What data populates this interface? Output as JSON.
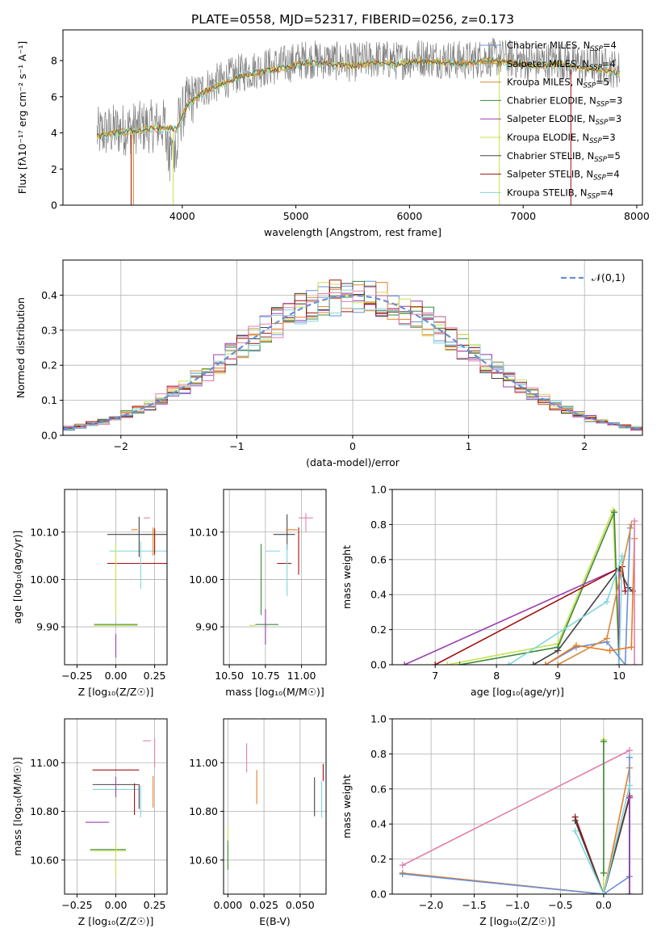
{
  "figure": {
    "title": "PLATE=0558, MJD=52317, FIBERID=0256, z=0.173",
    "colors": {
      "chabrier_miles": "#6a8fd6",
      "salpeter_miles": "#e87d1f",
      "kroupa_miles": "#d88a3a",
      "chabrier_elodie": "#3a8a3a",
      "salpeter_elodie": "#9b3fb0",
      "kroupa_elodie": "#c8e04a",
      "chabrier_stelib": "#444444",
      "salpeter_stelib": "#a01010",
      "kroupa_stelib": "#7fd6dc",
      "data": "#808080",
      "pink": "#e080b0",
      "grid": "#b0b0b0"
    }
  },
  "chart_data": [
    {
      "id": "spectrum",
      "type": "line",
      "xlabel": "wavelength [Angstrom, rest frame]",
      "ylabel": "Flux [fλ10⁻¹⁷ erg cm⁻² s⁻¹ A⁻¹]",
      "xlim": [
        2950,
        8050
      ],
      "ylim": [
        0,
        9.7
      ],
      "xticks": [
        4000,
        5000,
        6000,
        7000,
        8000
      ],
      "yticks": [
        0,
        2,
        4,
        6,
        8
      ],
      "grid": false,
      "legend_position": "top-right",
      "legend": [
        {
          "label": "Chabrier MILES, N",
          "sub": "SSP",
          "suffix": "=4",
          "color_key": "chabrier_miles"
        },
        {
          "label": "Salpeter MILES, N",
          "sub": "SSP",
          "suffix": "=4",
          "color_key": "salpeter_miles"
        },
        {
          "label": "Kroupa MILES, N",
          "sub": "SSP",
          "suffix": "=5",
          "color_key": "kroupa_miles"
        },
        {
          "label": "Chabrier ELODIE, N",
          "sub": "SSP",
          "suffix": "=3",
          "color_key": "chabrier_elodie"
        },
        {
          "label": "Salpeter ELODIE, N",
          "sub": "SSP",
          "suffix": "=3",
          "color_key": "salpeter_elodie"
        },
        {
          "label": "Kroupa ELODIE, N",
          "sub": "SSP",
          "suffix": "=3",
          "color_key": "kroupa_elodie"
        },
        {
          "label": "Chabrier STELIB, N",
          "sub": "SSP",
          "suffix": "=5",
          "color_key": "chabrier_stelib"
        },
        {
          "label": "Salpeter STELIB, N",
          "sub": "SSP",
          "suffix": "=4",
          "color_key": "salpeter_stelib"
        },
        {
          "label": "Kroupa STELIB, N",
          "sub": "SSP",
          "suffix": "=4",
          "color_key": "kroupa_stelib"
        }
      ],
      "envelope": {
        "x": [
          3250,
          3400,
          3550,
          3700,
          3850,
          3950,
          4050,
          4200,
          4350,
          4500,
          4700,
          4900,
          5100,
          5300,
          5500,
          5700,
          5900,
          6100,
          6300,
          6500,
          6700,
          6900,
          7100,
          7300,
          7500,
          7700,
          7850
        ],
        "y": [
          4.1,
          4.3,
          4.4,
          4.5,
          4.6,
          4.5,
          5.9,
          6.6,
          7.0,
          7.4,
          7.7,
          7.9,
          8.2,
          8.1,
          8.0,
          8.2,
          8.1,
          8.3,
          8.2,
          8.1,
          8.3,
          8.2,
          8.0,
          8.1,
          7.9,
          7.8,
          7.6
        ]
      },
      "dropouts": [
        {
          "x": 3550,
          "color_key": "salpeter_stelib"
        },
        {
          "x": 3570,
          "color_key": "salpeter_miles"
        },
        {
          "x": 3920,
          "color_key": "kroupa_elodie"
        },
        {
          "x": 6790,
          "color_key": "kroupa_elodie"
        },
        {
          "x": 7420,
          "color_key": "salpeter_stelib"
        }
      ]
    },
    {
      "id": "residuals",
      "type": "histogram",
      "xlabel": "(data-model)/error",
      "ylabel": "Normed distribution",
      "xlim": [
        -2.5,
        2.5
      ],
      "ylim": [
        0,
        0.5
      ],
      "xticks": [
        -2,
        -1,
        0,
        1,
        2
      ],
      "yticks": [
        0.0,
        0.1,
        0.2,
        0.3,
        0.4
      ],
      "grid": true,
      "legend_position": "top-right",
      "legend": [
        {
          "label": "𝒩(0,1)",
          "color_key": "chabrier_miles",
          "style": "dashed"
        }
      ],
      "bin_width": 0.1
    },
    {
      "id": "age-vs-Z",
      "type": "errorbar",
      "xlabel": "Z [log₁₀(Z/Z☉)]",
      "ylabel": "age  [log₁₀(age/yr)]",
      "xlim": [
        -0.33,
        0.33
      ],
      "ylim": [
        9.82,
        10.19
      ],
      "xticks": [
        -0.25,
        0.0,
        0.25
      ],
      "yticks": [
        9.9,
        10.0,
        10.1
      ],
      "grid": true,
      "points": [
        {
          "x": 0.18,
          "xerr": 0.47,
          "y": 10.095,
          "yerr": 0.0,
          "color_key": "chabrier_stelib"
        },
        {
          "x": 0.18,
          "xerr": 0.47,
          "y": 10.034,
          "yerr": 0.0,
          "color_key": "salpeter_stelib"
        },
        {
          "x": 0.15,
          "xerr": 0.38,
          "y": 10.06,
          "yerr": 0.0,
          "color_key": "kroupa_stelib"
        },
        {
          "x": 0.0,
          "xerr": 0.28,
          "y": 9.905,
          "yerr": 0.0,
          "color_key": "chabrier_elodie"
        },
        {
          "x": 0.0,
          "xerr": 0.28,
          "y": 9.903,
          "yerr": 0.0,
          "color_key": "kroupa_elodie"
        },
        {
          "x": 0.0,
          "xerr": 0.0,
          "y": 10.0,
          "yerr": 0.15,
          "color_key": "kroupa_elodie"
        },
        {
          "x": 0.0,
          "xerr": 0.0,
          "y": 9.86,
          "yerr": 0.05,
          "color_key": "salpeter_elodie"
        },
        {
          "x": 0.2,
          "xerr": 0.04,
          "y": 10.13,
          "yerr": 0.0,
          "color_key": "pink"
        },
        {
          "x": 0.15,
          "xerr": 0.0,
          "y": 10.09,
          "yerr": 0.085,
          "color_key": "chabrier_stelib"
        },
        {
          "x": 0.16,
          "xerr": 0.0,
          "y": 10.03,
          "yerr": 0.1,
          "color_key": "kroupa_stelib"
        },
        {
          "x": 0.24,
          "xerr": 0.0,
          "y": 10.08,
          "yerr": 0.06,
          "color_key": "salpeter_miles"
        },
        {
          "x": 0.25,
          "xerr": 0.0,
          "y": 10.08,
          "yerr": 0.055,
          "color_key": "salpeter_stelib"
        },
        {
          "x": 0.12,
          "xerr": 0.04,
          "y": 10.105,
          "yerr": 0.0,
          "color_key": "salpeter_miles"
        }
      ]
    },
    {
      "id": "age-vs-mass",
      "type": "errorbar",
      "xlabel": "mass [log₁₀(M/M☉)]",
      "ylabel": "",
      "xlim": [
        10.46,
        11.17
      ],
      "ylim": [
        9.82,
        10.19
      ],
      "xticks": [
        10.5,
        10.75,
        11.0
      ],
      "yticks": [
        9.9,
        10.0,
        10.1
      ],
      "grid": true,
      "points": [
        {
          "x": 10.88,
          "xerr": 0.15,
          "y": 10.095,
          "yerr": 0.0,
          "color_key": "chabrier_stelib"
        },
        {
          "x": 10.88,
          "xerr": 0.1,
          "y": 10.034,
          "yerr": 0.0,
          "color_key": "salpeter_stelib"
        },
        {
          "x": 10.76,
          "xerr": 0.16,
          "y": 9.905,
          "yerr": 0.0,
          "color_key": "chabrier_elodie"
        },
        {
          "x": 10.66,
          "xerr": 0.04,
          "y": 9.903,
          "yerr": 0.0,
          "color_key": "kroupa_elodie"
        },
        {
          "x": 10.8,
          "xerr": 0.1,
          "y": 10.06,
          "yerr": 0.0,
          "color_key": "kroupa_stelib"
        },
        {
          "x": 10.72,
          "xerr": 0.0,
          "y": 10.0,
          "yerr": 0.15,
          "color_key": "chabrier_elodie"
        },
        {
          "x": 10.75,
          "xerr": 0.0,
          "y": 9.9,
          "yerr": 0.075,
          "color_key": "salpeter_elodie"
        },
        {
          "x": 10.98,
          "xerr": 0.0,
          "y": 10.06,
          "yerr": 0.1,
          "color_key": "salpeter_stelib"
        },
        {
          "x": 10.9,
          "xerr": 0.0,
          "y": 10.1,
          "yerr": 0.075,
          "color_key": "chabrier_stelib"
        },
        {
          "x": 10.9,
          "xerr": 0.0,
          "y": 10.02,
          "yerr": 0.11,
          "color_key": "kroupa_stelib"
        },
        {
          "x": 11.03,
          "xerr": 0.1,
          "y": 10.13,
          "yerr": 0.0,
          "color_key": "pink"
        },
        {
          "x": 11.03,
          "xerr": 0.0,
          "y": 10.12,
          "yerr": 0.04,
          "color_key": "pink"
        },
        {
          "x": 10.93,
          "xerr": 0.08,
          "y": 10.105,
          "yerr": 0.0,
          "color_key": "salpeter_miles"
        }
      ]
    },
    {
      "id": "massweight-vs-age",
      "type": "line",
      "xlabel": "age  [log₁₀(age/yr)]",
      "ylabel": "mass weight",
      "xlim": [
        6.3,
        10.38
      ],
      "ylim": [
        0.0,
        1.0
      ],
      "xticks": [
        7,
        8,
        9,
        10
      ],
      "yticks": [
        0.0,
        0.2,
        0.4,
        0.6,
        0.8,
        1.0
      ],
      "grid": true,
      "series": [
        {
          "color_key": "kroupa_elodie",
          "x": [
            7.2,
            9.0,
            9.9,
            10.0
          ],
          "y": [
            0.0,
            0.12,
            0.88,
            0.0
          ]
        },
        {
          "color_key": "chabrier_elodie",
          "x": [
            7.4,
            9.0,
            9.92,
            10.0
          ],
          "y": [
            0.0,
            0.1,
            0.87,
            0.0
          ]
        },
        {
          "color_key": "salpeter_elodie",
          "x": [
            6.5,
            10.0,
            10.0
          ],
          "y": [
            0.0,
            0.55,
            0.0
          ]
        },
        {
          "color_key": "salpeter_stelib",
          "x": [
            7.0,
            10.05,
            10.1
          ],
          "y": [
            0.0,
            0.56,
            0.42
          ]
        },
        {
          "color_key": "chabrier_stelib",
          "x": [
            8.6,
            9.0,
            10.0,
            10.15,
            10.22
          ],
          "y": [
            0.0,
            0.08,
            0.55,
            0.44,
            0.42
          ]
        },
        {
          "color_key": "kroupa_stelib",
          "x": [
            8.2,
            9.8,
            10.05,
            10.0
          ],
          "y": [
            0.0,
            0.36,
            0.62,
            0.0
          ]
        },
        {
          "color_key": "chabrier_miles",
          "x": [
            8.8,
            9.3,
            9.8,
            10.1,
            10.18
          ],
          "y": [
            0.0,
            0.1,
            0.13,
            0.0,
            0.78
          ]
        },
        {
          "color_key": "salpeter_miles",
          "x": [
            8.8,
            9.3,
            9.85,
            10.2,
            10.25
          ],
          "y": [
            0.0,
            0.11,
            0.08,
            0.1,
            0.72
          ]
        },
        {
          "color_key": "kroupa_miles",
          "x": [
            9.0,
            9.8,
            10.2
          ],
          "y": [
            0.0,
            0.15,
            0.8
          ]
        },
        {
          "color_key": "pink",
          "x": [
            10.25,
            10.25
          ],
          "y": [
            0.0,
            0.82
          ]
        }
      ]
    },
    {
      "id": "mass-vs-Z",
      "type": "errorbar",
      "xlabel": "Z [log₁₀(Z/Z☉)]",
      "ylabel": "mass [log₁₀(M/M☉)]",
      "xlim": [
        -0.33,
        0.33
      ],
      "ylim": [
        10.46,
        11.18
      ],
      "xticks": [
        -0.25,
        0.0,
        0.25
      ],
      "yticks": [
        10.6,
        10.8,
        11.0
      ],
      "grid": true,
      "points": [
        {
          "x": 0.0,
          "xerr": 0.3,
          "y": 10.97,
          "yerr": 0.0,
          "color_key": "salpeter_stelib"
        },
        {
          "x": 0.0,
          "xerr": 0.3,
          "y": 10.91,
          "yerr": 0.0,
          "color_key": "chabrier_stelib"
        },
        {
          "x": 0.0,
          "xerr": 0.3,
          "y": 10.89,
          "yerr": 0.0,
          "color_key": "kroupa_stelib"
        },
        {
          "x": -0.12,
          "xerr": 0.15,
          "y": 10.755,
          "yerr": 0.0,
          "color_key": "salpeter_elodie"
        },
        {
          "x": -0.05,
          "xerr": 0.23,
          "y": 10.643,
          "yerr": 0.0,
          "color_key": "chabrier_elodie"
        },
        {
          "x": -0.05,
          "xerr": 0.23,
          "y": 10.638,
          "yerr": 0.0,
          "color_key": "kroupa_elodie"
        },
        {
          "x": 0.0,
          "xerr": 0.0,
          "y": 10.6,
          "yerr": 0.14,
          "color_key": "kroupa_elodie"
        },
        {
          "x": 0.0,
          "xerr": 0.0,
          "y": 10.9,
          "yerr": 0.085,
          "color_key": "salpeter_elodie"
        },
        {
          "x": 0.2,
          "xerr": 0.05,
          "y": 11.09,
          "yerr": 0.0,
          "color_key": "pink"
        },
        {
          "x": 0.25,
          "xerr": 0.0,
          "y": 11.04,
          "yerr": 0.12,
          "color_key": "pink"
        },
        {
          "x": 0.12,
          "xerr": 0.0,
          "y": 10.85,
          "yerr": 0.13,
          "color_key": "salpeter_stelib"
        },
        {
          "x": 0.15,
          "xerr": 0.0,
          "y": 10.86,
          "yerr": 0.1,
          "color_key": "chabrier_stelib"
        },
        {
          "x": 0.16,
          "xerr": 0.0,
          "y": 10.84,
          "yerr": 0.13,
          "color_key": "kroupa_stelib"
        },
        {
          "x": 0.24,
          "xerr": 0.0,
          "y": 10.88,
          "yerr": 0.13,
          "color_key": "salpeter_miles"
        }
      ]
    },
    {
      "id": "mass-vs-EBV",
      "type": "errorbar",
      "xlabel": "E(B-V)",
      "ylabel": "",
      "xlim": [
        -0.003,
        0.068
      ],
      "ylim": [
        10.46,
        11.18
      ],
      "xticks": [
        0.0,
        0.025,
        0.05
      ],
      "yticks": [
        10.6,
        10.8,
        11.0
      ],
      "grid": true,
      "points": [
        {
          "x": 0.0,
          "xerr": 0.0,
          "y": 10.65,
          "yerr": 0.18,
          "color_key": "kroupa_elodie"
        },
        {
          "x": 0.0,
          "xerr": 0.0,
          "y": 10.62,
          "yerr": 0.12,
          "color_key": "chabrier_elodie"
        },
        {
          "x": 0.013,
          "xerr": 0.0,
          "y": 11.02,
          "yerr": 0.12,
          "color_key": "pink"
        },
        {
          "x": 0.02,
          "xerr": 0.0,
          "y": 10.9,
          "yerr": 0.14,
          "color_key": "salpeter_miles"
        },
        {
          "x": 0.06,
          "xerr": 0.0,
          "y": 10.86,
          "yerr": 0.16,
          "color_key": "chabrier_stelib"
        },
        {
          "x": 0.065,
          "xerr": 0.0,
          "y": 10.85,
          "yerr": 0.15,
          "color_key": "kroupa_stelib"
        },
        {
          "x": 0.066,
          "xerr": 0.0,
          "y": 10.96,
          "yerr": 0.07,
          "color_key": "salpeter_stelib"
        }
      ]
    },
    {
      "id": "massweight-vs-Z",
      "type": "line",
      "xlabel": "Z [log₁₀(Z/Z☉)]",
      "ylabel": "mass weight",
      "xlim": [
        -2.45,
        0.45
      ],
      "ylim": [
        0.0,
        1.0
      ],
      "xticks": [
        -2.0,
        -1.5,
        -1.0,
        -0.5,
        0.0
      ],
      "yticks": [
        0.0,
        0.2,
        0.4,
        0.6,
        0.8,
        1.0
      ],
      "grid": true,
      "series": [
        {
          "color_key": "pink",
          "x": [
            -2.33,
            0.3
          ],
          "y": [
            0.165,
            0.82
          ]
        },
        {
          "color_key": "salpeter_miles",
          "x": [
            -2.33,
            0.0,
            0.3
          ],
          "y": [
            0.12,
            0.0,
            0.72
          ]
        },
        {
          "color_key": "chabrier_miles",
          "x": [
            -2.33,
            0.0,
            0.3,
            0.3
          ],
          "y": [
            0.115,
            0.0,
            0.1,
            0.78
          ]
        },
        {
          "color_key": "kroupa_elodie",
          "x": [
            0.0,
            0.0
          ],
          "y": [
            0.0,
            0.88
          ]
        },
        {
          "color_key": "chabrier_elodie",
          "x": [
            0.0,
            0.0
          ],
          "y": [
            0.12,
            0.87
          ]
        },
        {
          "color_key": "salpeter_stelib",
          "x": [
            -0.33,
            0.0,
            0.3
          ],
          "y": [
            0.44,
            0.0,
            0.56
          ]
        },
        {
          "color_key": "chabrier_stelib",
          "x": [
            -0.33,
            0.0,
            0.3,
            0.3
          ],
          "y": [
            0.42,
            0.0,
            0.55,
            0.0
          ]
        },
        {
          "color_key": "kroupa_stelib",
          "x": [
            -0.33,
            0.0,
            0.3
          ],
          "y": [
            0.36,
            0.0,
            0.62
          ]
        },
        {
          "color_key": "salpeter_elodie",
          "x": [
            0.3,
            0.3
          ],
          "y": [
            0.0,
            0.55
          ]
        }
      ]
    }
  ]
}
